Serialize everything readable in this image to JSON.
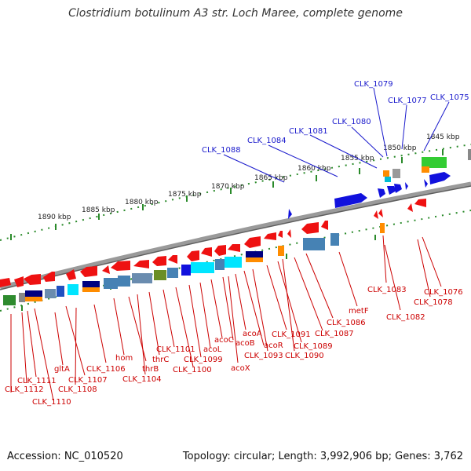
{
  "title": "Clostridium botulinum A3 str. Loch Maree, complete genome",
  "footer": {
    "accession": "Accession: NC_010520",
    "topology": "Topology: circular; Length: 3,992,906 bp; Genes: 3,762"
  },
  "colors": {
    "forward_label": "#1a1acc",
    "reverse_label": "#cc0000",
    "backbone": "#8a8a8a",
    "scale_ticks": "#2a8a2a",
    "reverse_gene": "#ee1111",
    "forward_gene": "#1111dd"
  },
  "scale": {
    "unit": "kbp",
    "ticks": [
      {
        "label": "1890 kbp"
      },
      {
        "label": "1885 kbp"
      },
      {
        "label": "1880 kbp"
      },
      {
        "label": "1875 kbp"
      },
      {
        "label": "1870 kbp"
      },
      {
        "label": "1865 kbp"
      },
      {
        "label": "1860 kbp"
      },
      {
        "label": "1855 kbp"
      },
      {
        "label": "1850 kbp"
      },
      {
        "label": "1845 kbp"
      }
    ]
  },
  "forward_labels": [
    {
      "label": "CLK_1088"
    },
    {
      "label": "CLK_1084"
    },
    {
      "label": "CLK_1081"
    },
    {
      "label": "CLK_1080"
    },
    {
      "label": "CLK_1079"
    },
    {
      "label": "CLK_1077"
    },
    {
      "label": "CLK_1075"
    }
  ],
  "reverse_labels": [
    {
      "label": "CLK_1111"
    },
    {
      "label": "CLK_1112"
    },
    {
      "label": "CLK_1110"
    },
    {
      "label": "gltA"
    },
    {
      "label": "CLK_1107"
    },
    {
      "label": "CLK_1108"
    },
    {
      "label": "CLK_1106"
    },
    {
      "label": "hom"
    },
    {
      "label": "thrB"
    },
    {
      "label": "CLK_1104"
    },
    {
      "label": "thrC"
    },
    {
      "label": "CLK_1101"
    },
    {
      "label": "CLK_1100"
    },
    {
      "label": "CLK_1099"
    },
    {
      "label": "acoL"
    },
    {
      "label": "acoC"
    },
    {
      "label": "acoB"
    },
    {
      "label": "acoX"
    },
    {
      "label": "acoA"
    },
    {
      "label": "acoR"
    },
    {
      "label": "CLK_1093"
    },
    {
      "label": "CLK_1091"
    },
    {
      "label": "CLK_1089"
    },
    {
      "label": "CLK_1090"
    },
    {
      "label": "CLK_1087"
    },
    {
      "label": "CLK_1086"
    },
    {
      "label": "metF"
    },
    {
      "label": "CLK_1083"
    },
    {
      "label": "CLK_1082"
    },
    {
      "label": "CLK_1078"
    },
    {
      "label": "CLK_1076"
    }
  ]
}
